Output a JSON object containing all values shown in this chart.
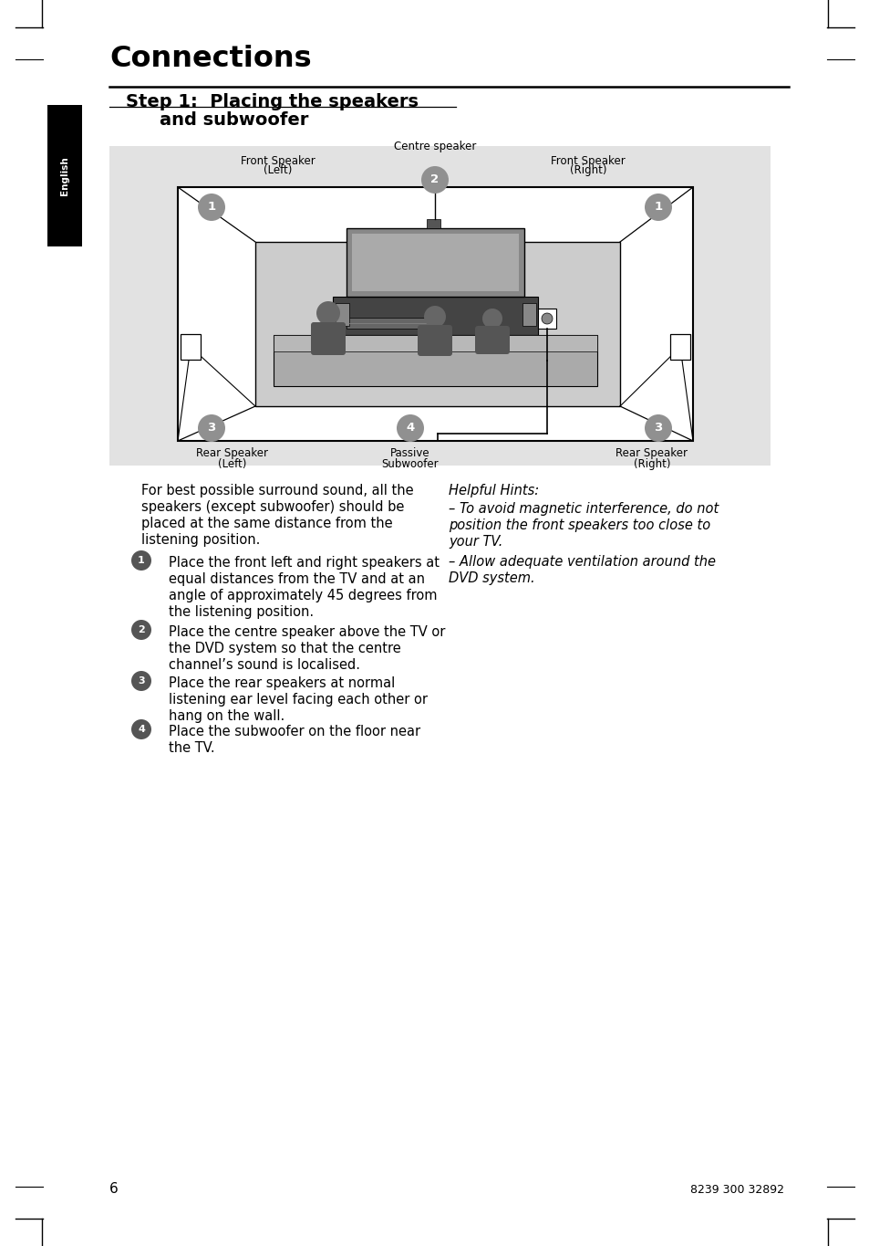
{
  "title": "Connections",
  "bg_color": "#ffffff",
  "diagram_bg": "#e2e2e2",
  "page_number": "6",
  "footer_text": "8239 300 32892",
  "body_lines": [
    "For best possible surround sound, all the",
    "speakers (except subwoofer) should be",
    "placed at the same distance from the",
    "listening position."
  ],
  "bullet1_lines": [
    "Place the front left and right speakers at",
    "equal distances from the TV and at an",
    "angle of approximately 45 degrees from",
    "the listening position."
  ],
  "bullet2_lines": [
    "Place the centre speaker above the TV or",
    "the DVD system so that the centre",
    "channel’s sound is localised."
  ],
  "bullet3_lines": [
    "Place the rear speakers at normal",
    "listening ear level facing each other or",
    "hang on the wall."
  ],
  "bullet4_lines": [
    "Place the subwoofer on the floor near",
    "the TV."
  ],
  "hints_title": "Helpful Hints:",
  "hint1_lines": [
    "– To avoid magnetic interference, do not",
    "position the front speakers too close to",
    "your TV."
  ],
  "hint2_lines": [
    "– Allow adequate ventilation around the",
    "DVD system."
  ]
}
